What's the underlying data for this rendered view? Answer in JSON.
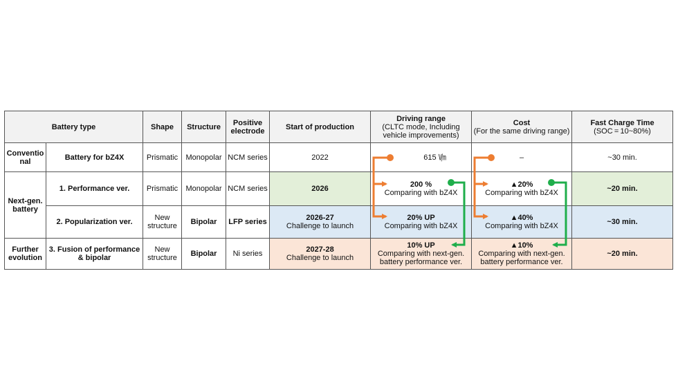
{
  "headers": {
    "battery_type": "Battery type",
    "shape": "Shape",
    "structure": "Structure",
    "positive_electrode": "Positive electrode",
    "start_of_production": "Start of production",
    "driving_range": "Driving range",
    "driving_range_sub": "(CLTC mode, Including vehicle improvements)",
    "cost": "Cost",
    "cost_sub": "(For the same driving range)",
    "fast_charge": "Fast Charge Time",
    "fast_charge_sub": "(SOC = 10~80%)"
  },
  "groups": {
    "conventional": "Conventio nal",
    "next_gen": "Next-gen. battery",
    "further": "Further evolution"
  },
  "rows": [
    {
      "name": "Battery for bZ4X",
      "shape": "Prismatic",
      "structure": "Monopolar",
      "electrode": "NCM series",
      "production": "2022",
      "production_sub": "",
      "range": "615 ㏞",
      "range_sub": "",
      "cost": "–",
      "cost_sub": "",
      "charge": "~30 min."
    },
    {
      "name": "1. Performance ver.",
      "shape": "Prismatic",
      "structure": "Monopolar",
      "electrode": "NCM series",
      "production": "2026",
      "production_sub": "",
      "range": "200 %",
      "range_sub": "Comparing with bZ4X",
      "cost": "▲20%",
      "cost_sub": "Comparing with bZ4X",
      "charge": "~20 min."
    },
    {
      "name": "2. Popularization ver.",
      "shape": "New structure",
      "structure": "Bipolar",
      "electrode": "LFP series",
      "production": "2026-27",
      "production_sub": "Challenge to launch",
      "range": "20%  UP",
      "range_sub": "Comparing with bZ4X",
      "cost": "▲40%",
      "cost_sub": "Comparing with bZ4X",
      "charge": "~30 min."
    },
    {
      "name": "3. Fusion of performance & bipolar",
      "shape": "New structure",
      "structure": "Bipolar",
      "electrode": "Ni series",
      "production": "2027-28",
      "production_sub": "Challenge to launch",
      "range": "10%  UP",
      "range_sub": "Comparing with next-gen. battery performance ver.",
      "cost": "▲10%",
      "cost_sub": "Comparing with next-gen. battery performance ver.",
      "charge": "~20 min."
    }
  ],
  "colors": {
    "orange_arrow": "#ed7d31",
    "green_arrow": "#1fae4b",
    "green_fill": "#e3efd9",
    "blue_fill": "#dce9f5",
    "peach_fill": "#fbe5d7"
  }
}
